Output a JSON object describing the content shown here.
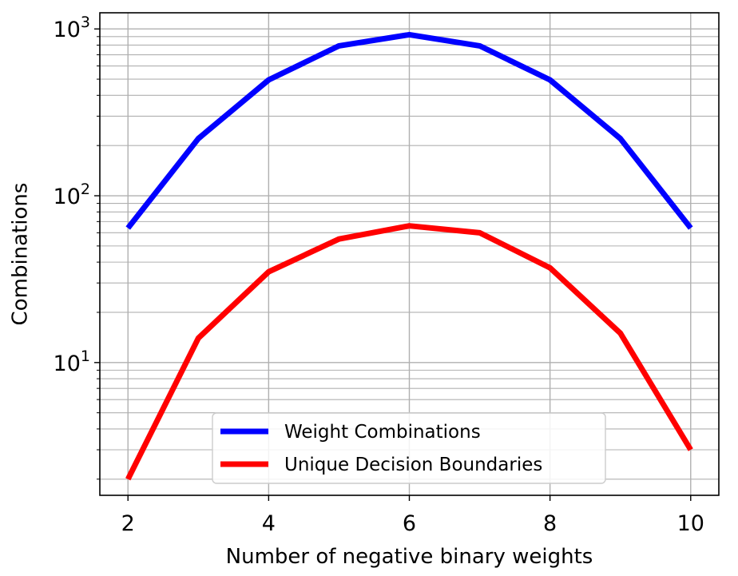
{
  "chart_data": {
    "type": "line",
    "title": "",
    "xlabel": "Number of negative binary weights",
    "ylabel": "Combinations",
    "yscale": "log",
    "xlim": [
      1.6,
      10.4
    ],
    "ylim": [
      1.6,
      1250
    ],
    "x": [
      2,
      3,
      4,
      5,
      6,
      7,
      8,
      9,
      10
    ],
    "x_ticks": [
      2,
      4,
      6,
      8,
      10
    ],
    "x_tick_labels": [
      "2",
      "4",
      "6",
      "8",
      "10"
    ],
    "y_ticks": [
      {
        "value": 10,
        "base": "10",
        "exp": "1"
      },
      {
        "value": 100,
        "base": "10",
        "exp": "2"
      },
      {
        "value": 1000,
        "base": "10",
        "exp": "3"
      }
    ],
    "grid": true,
    "legend_position": "lower-center",
    "series": [
      {
        "name": "Weight Combinations",
        "color": "#0000ff",
        "values": [
          64,
          220,
          495,
          792,
          924,
          792,
          495,
          220,
          64
        ]
      },
      {
        "name": "Unique Decision Boundaries",
        "color": "#ff0000",
        "values": [
          2,
          14,
          35,
          55,
          66,
          60,
          37,
          15,
          3
        ]
      }
    ]
  }
}
